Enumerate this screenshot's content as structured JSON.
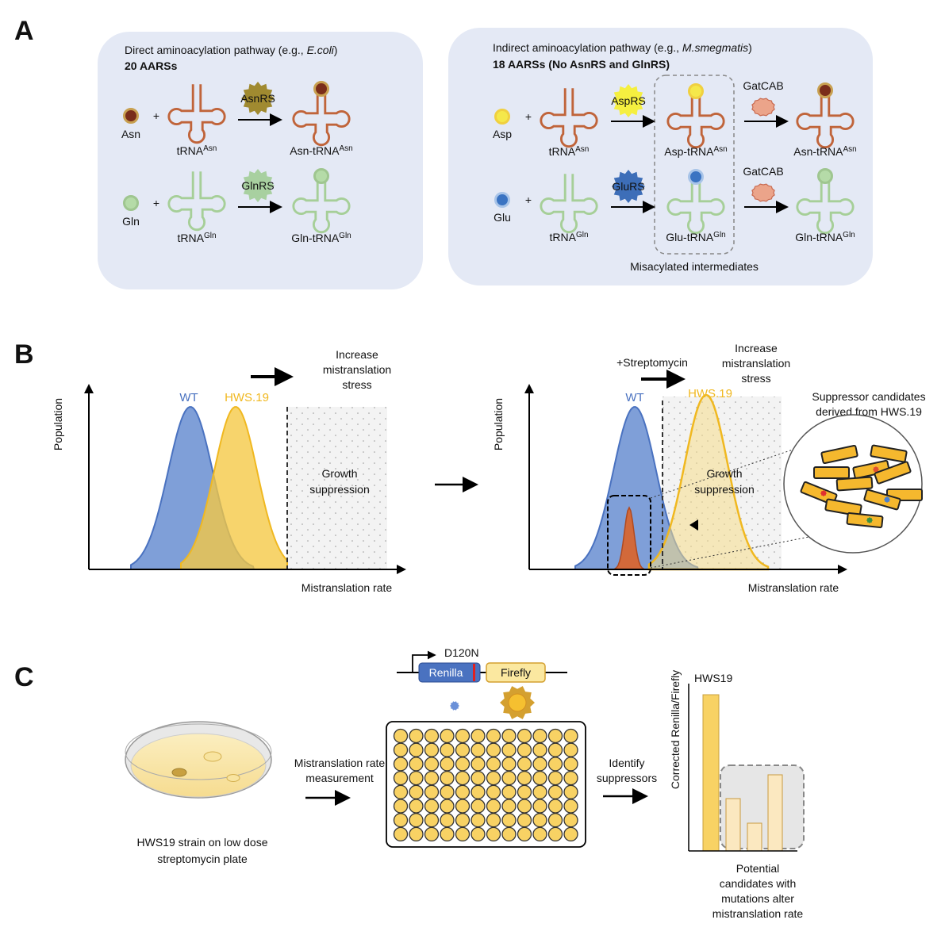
{
  "panel_a": {
    "label": "A",
    "direct": {
      "title": {
        "text": "Direct aminoacylation pathway (e.g., ",
        "organism": "E.coli",
        "close": ")"
      },
      "count": "20 AARSs",
      "rows": [
        {
          "amino_acid": "Asn",
          "plus": "+",
          "trna": {
            "base": "tRNA",
            "sup": "Asn"
          },
          "enzyme": "AsnRS",
          "product": {
            "base": "Asn-tRNA",
            "sup": "Asn"
          }
        },
        {
          "amino_acid": "Gln",
          "plus": "+",
          "trna": {
            "base": "tRNA",
            "sup": "Gln"
          },
          "enzyme": "GlnRS",
          "product": {
            "base": "Gln-tRNA",
            "sup": "Gln"
          }
        }
      ]
    },
    "indirect": {
      "title": {
        "text": "Indirect aminoacylation pathway (e.g., ",
        "organism": "M.smegmatis",
        "close": ")"
      },
      "count": "18 AARSs (No AsnRS and GlnRS)",
      "rows": [
        {
          "amino_acid": "Asp",
          "plus": "+",
          "trna": {
            "base": "tRNA",
            "sup": "Asn"
          },
          "enzyme": "AspRS",
          "intermediate": {
            "base": "Asp-tRNA",
            "sup": "Asn"
          },
          "amidotransferase": "GatCAB",
          "product": {
            "base": "Asn-tRNA",
            "sup": "Asn"
          }
        },
        {
          "amino_acid": "Glu",
          "plus": "+",
          "trna": {
            "base": "tRNA",
            "sup": "Gln"
          },
          "enzyme": "GluRS",
          "intermediate": {
            "base": "Glu-tRNA",
            "sup": "Gln"
          },
          "amidotransferase": "GatCAB",
          "product": {
            "base": "Gln-tRNA",
            "sup": "Gln"
          }
        }
      ],
      "note": "Misacylated intermediates"
    }
  },
  "panel_b": {
    "label": "B",
    "left": {
      "stress": [
        "Increase",
        "mistranslation",
        "stress"
      ],
      "wt": "WT",
      "mutant": "HWS.19",
      "y_axis": "Population",
      "x_axis": "Mistranslation rate",
      "zone": [
        "Growth",
        "suppression"
      ]
    },
    "right": {
      "treatment": "+Streptomycin",
      "stress": [
        "Increase",
        "mistranslation",
        "stress"
      ],
      "wt": "WT",
      "mutant": "HWS.19",
      "y_axis": "Population",
      "x_axis": "Mistranslation rate",
      "zone": [
        "Growth",
        "suppression"
      ],
      "callout": [
        "Suppressor candidates",
        "derived from HWS.19"
      ]
    }
  },
  "panel_c": {
    "label": "C",
    "plate": [
      "HWS19 strain on low dose",
      "streptomycin plate"
    ],
    "step1": [
      "Mistranslation rate",
      "measurement"
    ],
    "construct": {
      "mutation": "D120N",
      "reporter1": "Renilla",
      "reporter2": "Firefly"
    },
    "step2": [
      "Identify",
      "suppressors"
    ],
    "chart_y_axis": "Corrected Renilla/Firefly",
    "chart_label": "HWS19",
    "outcome": [
      "Potential",
      "candidates with",
      "mutations alter",
      "mistranslation rate"
    ]
  }
}
